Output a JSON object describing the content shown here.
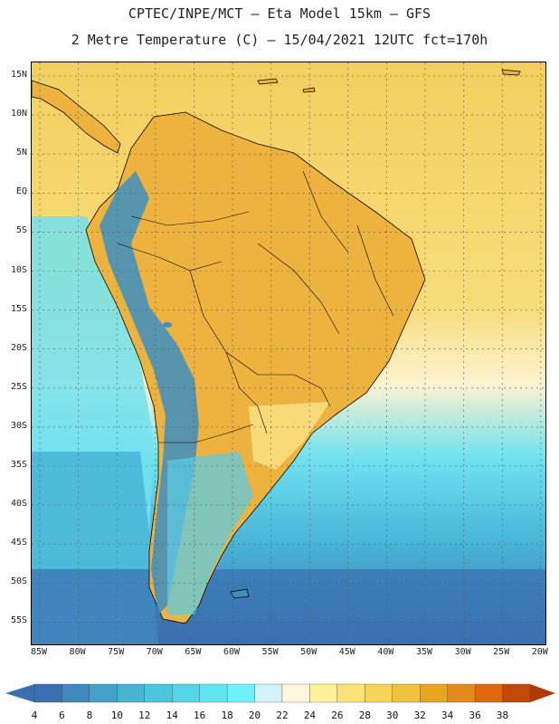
{
  "header": {
    "line1": "CPTEC/INPE/MCT –  Eta Model 15km – GFS",
    "line2": "2 Metre Temperature (C) – 15/04/2021 12UTC fct=170h"
  },
  "map": {
    "lat_labels": [
      "15N",
      "10N",
      "5N",
      "EQ",
      "5S",
      "10S",
      "15S",
      "20S",
      "25S",
      "30S",
      "35S",
      "40S",
      "45S",
      "50S",
      "55S"
    ],
    "lon_labels": [
      "85W",
      "80W",
      "75W",
      "70W",
      "65W",
      "60W",
      "55W",
      "50W",
      "45W",
      "40W",
      "35W",
      "30W",
      "25W",
      "20W"
    ],
    "lat_range": [
      15.5,
      -57.5
    ],
    "lon_range": [
      -86,
      -19.5
    ]
  },
  "colorbar": {
    "labels": [
      "4",
      "6",
      "8",
      "10",
      "12",
      "14",
      "16",
      "18",
      "20",
      "22",
      "24",
      "26",
      "28",
      "30",
      "32",
      "34",
      "36",
      "38"
    ],
    "colors": [
      "#3a6fb0",
      "#3f88c0",
      "#44a0cc",
      "#47b4d6",
      "#4cc6de",
      "#55d6e6",
      "#5fe6ef",
      "#6cf2f8",
      "#d2f2fa",
      "#fff6dd",
      "#fff298",
      "#fbe27a",
      "#f6d45a",
      "#f0c23e",
      "#e8a61e",
      "#e48a18",
      "#df6a0e",
      "#c24a08",
      "#b03a06"
    ]
  }
}
